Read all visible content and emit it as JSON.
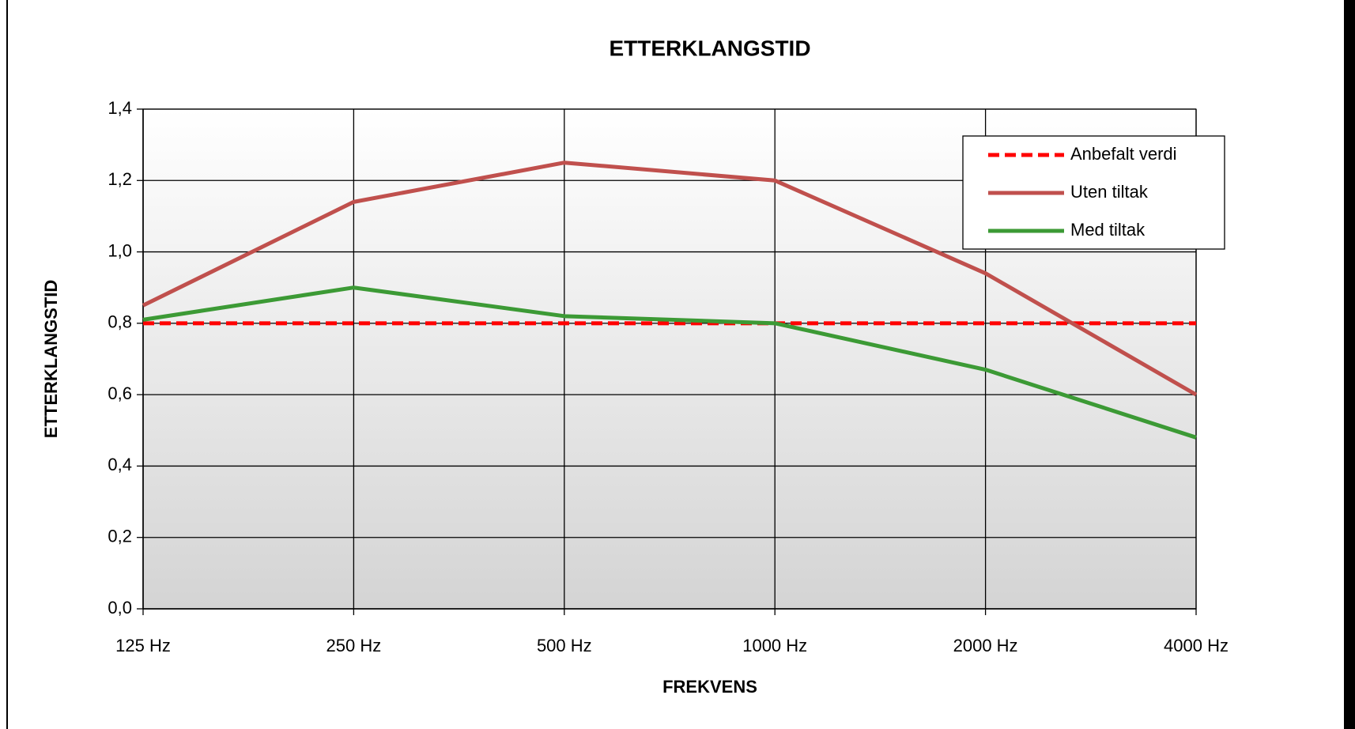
{
  "chart_data": {
    "type": "line",
    "title": "ETTERKLANGSTID",
    "x_label": "FREKVENS",
    "y_label": "ETTERKLANGSTID",
    "categories": [
      "125 Hz",
      "250 Hz",
      "500 Hz",
      "1000 Hz",
      "2000 Hz",
      "4000 Hz"
    ],
    "series": [
      {
        "name": "Anbefalt verdi",
        "color": "#ff0000",
        "style": "dashed",
        "values": [
          0.8,
          0.8,
          0.8,
          0.8,
          0.8,
          0.8
        ]
      },
      {
        "name": "Uten tiltak",
        "color": "#c0504d",
        "style": "solid",
        "values": [
          0.85,
          1.14,
          1.25,
          1.2,
          0.94,
          0.6
        ]
      },
      {
        "name": "Med tiltak",
        "color": "#3c9a35",
        "style": "solid",
        "values": [
          0.81,
          0.9,
          0.82,
          0.8,
          0.67,
          0.48
        ]
      }
    ],
    "ylim": [
      0,
      1.4
    ],
    "yticks": [
      {
        "value": 0,
        "label": "0,0"
      },
      {
        "value": 0.2,
        "label": "0,2"
      },
      {
        "value": 0.4,
        "label": "0,4"
      },
      {
        "value": 0.6,
        "label": "0,6"
      },
      {
        "value": 0.8,
        "label": "0,8"
      },
      {
        "value": 1.0,
        "label": "1,0"
      },
      {
        "value": 1.2,
        "label": "1,2"
      },
      {
        "value": 1.4,
        "label": "1,4"
      }
    ],
    "grid": true,
    "legend": "top-right"
  }
}
